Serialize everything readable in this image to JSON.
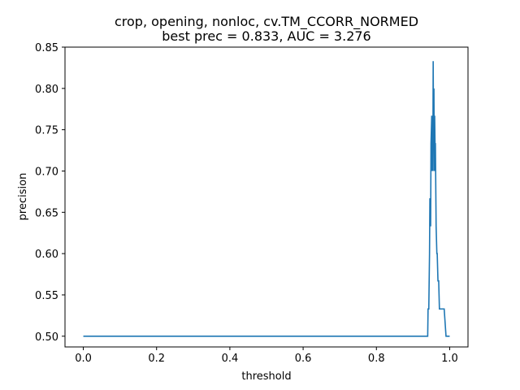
{
  "chart_data": {
    "type": "line",
    "title": "crop, opening, nonloc, cv.TM_CCORR_NORMED",
    "subtitle": "best prec = 0.833, AUC = 3.276",
    "xlabel": "threshold",
    "ylabel": "precision",
    "xlim": [
      -0.05,
      1.05
    ],
    "ylim": [
      0.487,
      0.85
    ],
    "xticks": [
      "0.0",
      "0.2",
      "0.4",
      "0.6",
      "0.8",
      "1.0"
    ],
    "yticks": [
      "0.50",
      "0.55",
      "0.60",
      "0.65",
      "0.70",
      "0.75",
      "0.80",
      "0.85"
    ],
    "grid": false,
    "series": [
      {
        "color": "#1f77b4",
        "x": [
          0.0,
          0.94,
          0.941,
          0.943,
          0.945,
          0.946,
          0.948,
          0.949,
          0.951,
          0.952,
          0.953,
          0.954,
          0.955,
          0.956,
          0.957,
          0.958,
          0.959,
          0.96,
          0.961,
          0.963,
          0.965,
          0.966,
          0.968,
          0.97,
          0.972,
          0.973,
          0.975,
          0.98,
          0.985,
          0.99,
          1.0
        ],
        "y": [
          0.5,
          0.5,
          0.533,
          0.533,
          0.6,
          0.667,
          0.633,
          0.733,
          0.767,
          0.7,
          0.767,
          0.7,
          0.833,
          0.733,
          0.8,
          0.7,
          0.767,
          0.733,
          0.733,
          0.633,
          0.6,
          0.6,
          0.567,
          0.567,
          0.533,
          0.533,
          0.533,
          0.533,
          0.533,
          0.5,
          0.5
        ]
      }
    ]
  }
}
